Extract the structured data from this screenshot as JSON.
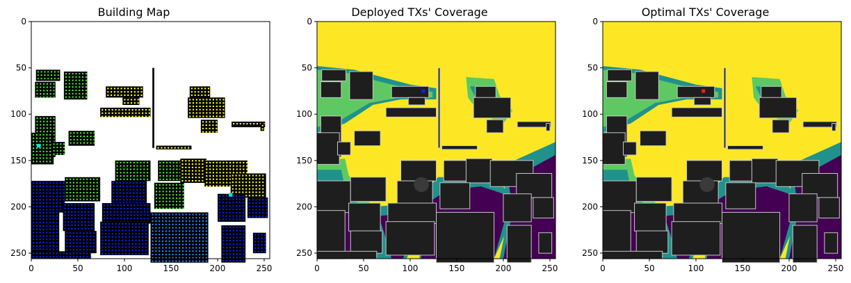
{
  "chart_data": [
    {
      "type": "heatmap",
      "title": "Building Map",
      "xlabel": "",
      "ylabel": "",
      "xlim": [
        0,
        256
      ],
      "ylim": [
        256,
        0
      ],
      "xticks": [
        0,
        50,
        100,
        150,
        200,
        250
      ],
      "yticks": [
        0,
        50,
        100,
        150,
        200,
        250
      ],
      "grid": false,
      "colors": {
        "background": "#ffffff",
        "building": "#000000",
        "green": "#44ee22",
        "yellow": "#ffff00",
        "blue": "#0022ff",
        "lightblue": "#2288ff",
        "cyan": "#00e5e5"
      }
    },
    {
      "type": "heatmap",
      "title": "Deployed TXs' Coverage",
      "xlabel": "",
      "ylabel": "",
      "xlim": [
        0,
        256
      ],
      "ylim": [
        256,
        0
      ],
      "xticks": [
        0,
        50,
        100,
        150,
        200,
        250
      ],
      "yticks": [
        0,
        50,
        100,
        150,
        200,
        250
      ],
      "grid": false,
      "tx_markers": [
        {
          "x": 114,
          "y": 75,
          "color": "#1a1aff"
        }
      ],
      "colors": {
        "high": "#fde725",
        "mid_high": "#5ec962",
        "mid": "#21918c",
        "low": "#440154",
        "building": "#1e1e1e",
        "edge": "#c8c8c8"
      }
    },
    {
      "type": "heatmap",
      "title": "Optimal TXs' Coverage",
      "xlabel": "",
      "ylabel": "",
      "xlim": [
        0,
        256
      ],
      "ylim": [
        256,
        0
      ],
      "xticks": [
        0,
        50,
        100,
        150,
        200,
        250
      ],
      "yticks": [
        0,
        50,
        100,
        150,
        200,
        250
      ],
      "grid": false,
      "tx_markers": [
        {
          "x": 108,
          "y": 75,
          "color": "#ff1a1a"
        }
      ],
      "colors": {
        "high": "#fde725",
        "mid_high": "#5ec962",
        "mid": "#21918c",
        "low": "#440154",
        "building": "#1e1e1e",
        "edge": "#c8c8c8"
      }
    }
  ]
}
